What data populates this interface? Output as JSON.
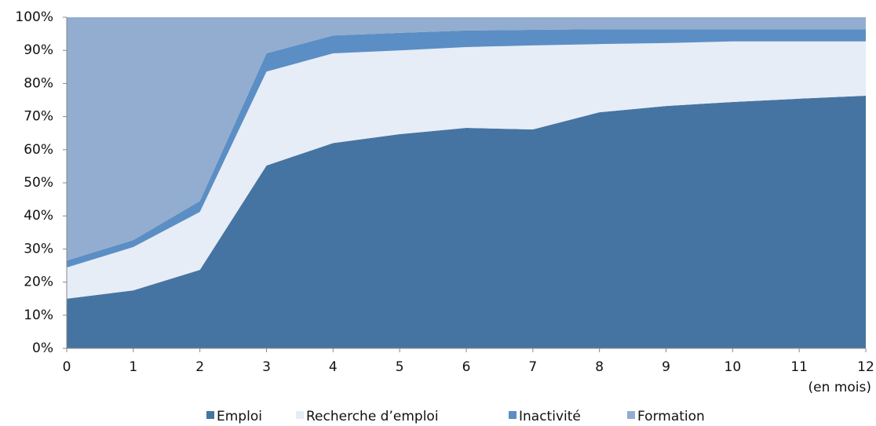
{
  "chart_data": {
    "type": "stacked_area",
    "x": [
      0,
      1,
      2,
      3,
      4,
      5,
      6,
      7,
      8,
      9,
      10,
      11,
      12
    ],
    "xlim": [
      0,
      12
    ],
    "xticks": [
      0,
      1,
      2,
      3,
      4,
      5,
      6,
      7,
      8,
      9,
      10,
      11,
      12
    ],
    "x_label": "(en mois)",
    "ylim": [
      0,
      100
    ],
    "yticks": [
      {
        "value": 0,
        "label": "0%"
      },
      {
        "value": 10,
        "label": "10%"
      },
      {
        "value": 20,
        "label": "20%"
      },
      {
        "value": 30,
        "label": "30%"
      },
      {
        "value": 40,
        "label": "40%"
      },
      {
        "value": 50,
        "label": "50%"
      },
      {
        "value": 60,
        "label": "60%"
      },
      {
        "value": 70,
        "label": "70%"
      },
      {
        "value": 80,
        "label": "80%"
      },
      {
        "value": 90,
        "label": "90%"
      },
      {
        "value": 100,
        "label": "100%"
      }
    ],
    "legend": "bottom",
    "series": [
      {
        "name": "Emploi",
        "color": "#4674a2",
        "values": [
          15,
          17.5,
          23.7,
          55.2,
          62,
          64.7,
          66.6,
          66.1,
          71.3,
          73.2,
          74.4,
          75.4,
          76.3
        ]
      },
      {
        "name": "Recherche d’emploi",
        "color": "#e6edf6",
        "values": [
          9.4,
          13.1,
          17.5,
          28.4,
          27.1,
          25.3,
          24.4,
          25.4,
          20.6,
          19,
          18.3,
          17.3,
          16.4
        ]
      },
      {
        "name": "Inactivité",
        "color": "#5b8ec4",
        "values": [
          2.1,
          2.1,
          3.3,
          5.5,
          5.4,
          5.3,
          5,
          4.7,
          4.5,
          4.2,
          3.7,
          3.7,
          3.7
        ]
      },
      {
        "name": "Formation",
        "color": "#92adcf",
        "values": [
          73.5,
          67.3,
          55.5,
          10.9,
          5.5,
          4.7,
          4,
          3.8,
          3.6,
          3.6,
          3.6,
          3.6,
          3.6
        ]
      }
    ]
  }
}
